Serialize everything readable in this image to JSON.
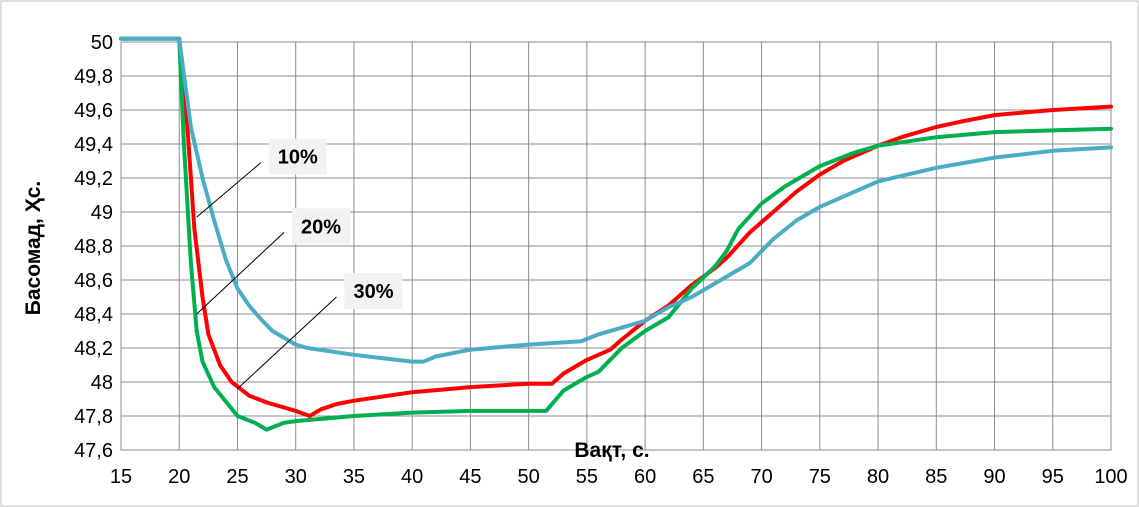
{
  "chart_data": {
    "type": "line",
    "xlabel": "Вақт, с.",
    "ylabel": "Басомад, Ҳс.",
    "xlim": [
      15,
      100
    ],
    "ylim": [
      47.6,
      50
    ],
    "x_ticks": [
      "15",
      "20",
      "25",
      "30",
      "35",
      "40",
      "45",
      "50",
      "55",
      "60",
      "65",
      "70",
      "75",
      "80",
      "85",
      "90",
      "95",
      "100"
    ],
    "y_ticks": [
      "47,6",
      "47,8",
      "48",
      "48,2",
      "48,4",
      "48,6",
      "48,8",
      "49",
      "49,2",
      "49,4",
      "49,6",
      "49,8",
      "50"
    ],
    "grid": true,
    "colors": {
      "red": "#ff0000",
      "green": "#00b050",
      "blue": "#4bacc6"
    },
    "series": [
      {
        "color": "red",
        "points": [
          [
            15,
            50.02
          ],
          [
            20,
            50.02
          ],
          [
            20.7,
            49.5
          ],
          [
            21.3,
            48.9
          ],
          [
            22,
            48.5
          ],
          [
            22.5,
            48.28
          ],
          [
            23.5,
            48.1
          ],
          [
            24.5,
            48.0
          ],
          [
            26,
            47.92
          ],
          [
            27.5,
            47.88
          ],
          [
            29,
            47.85
          ],
          [
            30,
            47.83
          ],
          [
            31.2,
            47.8
          ],
          [
            32.2,
            47.84
          ],
          [
            33.5,
            47.87
          ],
          [
            35,
            47.89
          ],
          [
            40,
            47.94
          ],
          [
            45,
            47.97
          ],
          [
            50,
            47.99
          ],
          [
            52,
            47.99
          ],
          [
            53,
            48.05
          ],
          [
            55,
            48.13
          ],
          [
            57,
            48.19
          ],
          [
            58,
            48.25
          ],
          [
            60,
            48.36
          ],
          [
            62,
            48.45
          ],
          [
            64,
            48.57
          ],
          [
            66,
            48.67
          ],
          [
            67,
            48.73
          ],
          [
            69,
            48.88
          ],
          [
            71,
            49.0
          ],
          [
            73,
            49.12
          ],
          [
            75,
            49.22
          ],
          [
            77,
            49.3
          ],
          [
            80,
            49.39
          ],
          [
            82,
            49.44
          ],
          [
            85,
            49.5
          ],
          [
            87,
            49.53
          ],
          [
            90,
            49.57
          ],
          [
            95,
            49.6
          ],
          [
            100,
            49.62
          ]
        ]
      },
      {
        "color": "green",
        "points": [
          [
            15,
            50.02
          ],
          [
            20,
            50.02
          ],
          [
            20.4,
            49.4
          ],
          [
            21,
            48.7
          ],
          [
            21.5,
            48.3
          ],
          [
            22,
            48.12
          ],
          [
            23,
            47.97
          ],
          [
            25,
            47.8
          ],
          [
            26.5,
            47.76
          ],
          [
            27.5,
            47.72
          ],
          [
            29,
            47.76
          ],
          [
            30,
            47.77
          ],
          [
            35,
            47.8
          ],
          [
            40,
            47.82
          ],
          [
            45,
            47.83
          ],
          [
            51.5,
            47.83
          ],
          [
            53,
            47.95
          ],
          [
            55,
            48.03
          ],
          [
            56,
            48.06
          ],
          [
            58,
            48.2
          ],
          [
            60,
            48.3
          ],
          [
            62,
            48.38
          ],
          [
            64,
            48.55
          ],
          [
            66,
            48.68
          ],
          [
            67,
            48.77
          ],
          [
            68,
            48.9
          ],
          [
            70,
            49.05
          ],
          [
            72,
            49.15
          ],
          [
            75,
            49.27
          ],
          [
            78,
            49.35
          ],
          [
            80,
            49.39
          ],
          [
            85,
            49.44
          ],
          [
            90,
            49.47
          ],
          [
            95,
            49.48
          ],
          [
            100,
            49.49
          ]
        ]
      },
      {
        "color": "blue",
        "points": [
          [
            15,
            50.02
          ],
          [
            20,
            50.02
          ],
          [
            21,
            49.5
          ],
          [
            22,
            49.2
          ],
          [
            23,
            48.95
          ],
          [
            24,
            48.72
          ],
          [
            25,
            48.55
          ],
          [
            26,
            48.45
          ],
          [
            27,
            48.37
          ],
          [
            28,
            48.3
          ],
          [
            30,
            48.22
          ],
          [
            31,
            48.2
          ],
          [
            35,
            48.16
          ],
          [
            40,
            48.12
          ],
          [
            41,
            48.12
          ],
          [
            42,
            48.15
          ],
          [
            45,
            48.19
          ],
          [
            50,
            48.22
          ],
          [
            54.5,
            48.24
          ],
          [
            56,
            48.28
          ],
          [
            60,
            48.36
          ],
          [
            62,
            48.44
          ],
          [
            64,
            48.5
          ],
          [
            67,
            48.62
          ],
          [
            69,
            48.7
          ],
          [
            71,
            48.84
          ],
          [
            73,
            48.95
          ],
          [
            75,
            49.03
          ],
          [
            78,
            49.12
          ],
          [
            80,
            49.18
          ],
          [
            85,
            49.26
          ],
          [
            90,
            49.32
          ],
          [
            95,
            49.36
          ],
          [
            100,
            49.38
          ]
        ]
      }
    ],
    "annotations": [
      {
        "text": "10%",
        "line_from": [
          21.5,
          48.97
        ],
        "line_to": [
          27,
          49.29
        ]
      },
      {
        "text": "20%",
        "line_from": [
          21.5,
          48.4
        ],
        "line_to": [
          29,
          48.88
        ]
      },
      {
        "text": "30%",
        "line_from": [
          25,
          47.96
        ],
        "line_to": [
          33.5,
          48.5
        ]
      }
    ]
  }
}
